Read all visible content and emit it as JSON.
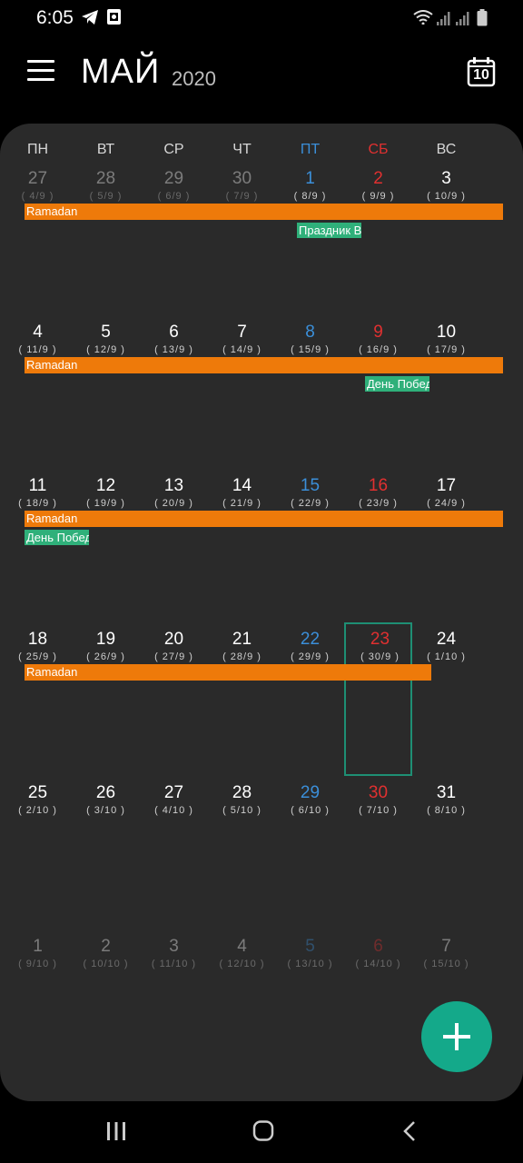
{
  "status_bar": {
    "time": "6:05",
    "icons": [
      "telegram-icon",
      "screenshot-icon",
      "wifi-icon",
      "signal-icon",
      "signal-icon",
      "battery-icon"
    ]
  },
  "header": {
    "menu_icon": "hamburger-menu-icon",
    "month": "МАЙ",
    "year": "2020",
    "today_icon": "calendar-today-icon",
    "today_day": "10"
  },
  "weekdays": [
    "ПН",
    "ВТ",
    "СР",
    "ЧТ",
    "ПТ",
    "СБ",
    "ВС"
  ],
  "colors": {
    "friday": "#3b8fd9",
    "saturday": "#e03030",
    "ramadan_event": "#ee7a0a",
    "holiday_event": "#2fb07a",
    "selected_border": "#1e8f74",
    "fab": "#14a98a"
  },
  "weeks": [
    {
      "days": [
        {
          "num": "27",
          "lunar": "( 4/9 )",
          "faded": true
        },
        {
          "num": "28",
          "lunar": "( 5/9 )",
          "faded": true
        },
        {
          "num": "29",
          "lunar": "( 6/9 )",
          "faded": true
        },
        {
          "num": "30",
          "lunar": "( 7/9 )",
          "faded": true
        },
        {
          "num": "1",
          "lunar": "( 8/9 )"
        },
        {
          "num": "2",
          "lunar": "( 9/9 )"
        },
        {
          "num": "3",
          "lunar": "( 10/9 )"
        }
      ],
      "events": [
        {
          "title": "Ramadan",
          "color": "orange",
          "start": 0,
          "span": 7,
          "row": 0
        },
        {
          "title": "Праздник В",
          "color": "green",
          "start": 4,
          "span": 1,
          "row": 1
        }
      ]
    },
    {
      "days": [
        {
          "num": "4",
          "lunar": "( 11/9 )"
        },
        {
          "num": "5",
          "lunar": "( 12/9 )"
        },
        {
          "num": "6",
          "lunar": "( 13/9 )"
        },
        {
          "num": "7",
          "lunar": "( 14/9 )"
        },
        {
          "num": "8",
          "lunar": "( 15/9 )"
        },
        {
          "num": "9",
          "lunar": "( 16/9 )"
        },
        {
          "num": "10",
          "lunar": "( 17/9 )"
        }
      ],
      "events": [
        {
          "title": "Ramadan",
          "color": "orange",
          "start": 0,
          "span": 7,
          "row": 0
        },
        {
          "title": "День Побед",
          "color": "green",
          "start": 5,
          "span": 1,
          "row": 1
        }
      ]
    },
    {
      "days": [
        {
          "num": "11",
          "lunar": "( 18/9 )"
        },
        {
          "num": "12",
          "lunar": "( 19/9 )"
        },
        {
          "num": "13",
          "lunar": "( 20/9 )"
        },
        {
          "num": "14",
          "lunar": "( 21/9 )"
        },
        {
          "num": "15",
          "lunar": "( 22/9 )"
        },
        {
          "num": "16",
          "lunar": "( 23/9 )"
        },
        {
          "num": "17",
          "lunar": "( 24/9 )"
        }
      ],
      "events": [
        {
          "title": "Ramadan",
          "color": "orange",
          "start": 0,
          "span": 7,
          "row": 0
        },
        {
          "title": "День Побед",
          "color": "green",
          "start": 0,
          "span": 1,
          "row": 1
        }
      ]
    },
    {
      "days": [
        {
          "num": "18",
          "lunar": "( 25/9 )"
        },
        {
          "num": "19",
          "lunar": "( 26/9 )"
        },
        {
          "num": "20",
          "lunar": "( 27/9 )"
        },
        {
          "num": "21",
          "lunar": "( 28/9 )"
        },
        {
          "num": "22",
          "lunar": "( 29/9 )"
        },
        {
          "num": "23",
          "lunar": "( 30/9 )",
          "selected": true
        },
        {
          "num": "24",
          "lunar": "( 1/10 )"
        }
      ],
      "events": [
        {
          "title": "Ramadan",
          "color": "orange",
          "start": 0,
          "span": 6,
          "row": 0
        }
      ]
    },
    {
      "days": [
        {
          "num": "25",
          "lunar": "( 2/10 )"
        },
        {
          "num": "26",
          "lunar": "( 3/10 )"
        },
        {
          "num": "27",
          "lunar": "( 4/10 )"
        },
        {
          "num": "28",
          "lunar": "( 5/10 )"
        },
        {
          "num": "29",
          "lunar": "( 6/10 )"
        },
        {
          "num": "30",
          "lunar": "( 7/10 )"
        },
        {
          "num": "31",
          "lunar": "( 8/10 )"
        }
      ],
      "events": []
    },
    {
      "days": [
        {
          "num": "1",
          "lunar": "( 9/10 )",
          "faded": true
        },
        {
          "num": "2",
          "lunar": "( 10/10 )",
          "faded": true
        },
        {
          "num": "3",
          "lunar": "( 11/10 )",
          "faded": true
        },
        {
          "num": "4",
          "lunar": "( 12/10 )",
          "faded": true
        },
        {
          "num": "5",
          "lunar": "( 13/10 )",
          "faded": true
        },
        {
          "num": "6",
          "lunar": "( 14/10 )",
          "faded": true
        },
        {
          "num": "7",
          "lunar": "( 15/10 )",
          "faded": true
        }
      ],
      "events": []
    }
  ],
  "fab": {
    "icon": "plus-icon"
  },
  "nav_bar": {
    "icons": [
      "recent-apps-icon",
      "home-icon",
      "back-icon"
    ]
  }
}
